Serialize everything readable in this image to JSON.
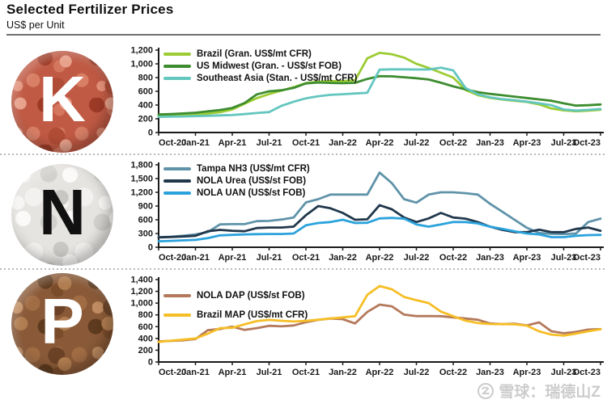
{
  "header": {
    "title": "Selected Fertilizer Prices",
    "subtitle": "US$ per Unit"
  },
  "watermark": {
    "text": "雪球：瑞德山Z"
  },
  "panels": [
    {
      "letter": "K",
      "letter_color": "#ffffff",
      "substance": "potash-granules"
    },
    {
      "letter": "N",
      "letter_color": "#111111",
      "substance": "nitrogen-prills"
    },
    {
      "letter": "P",
      "letter_color": "#ffffff",
      "substance": "phosphate-granules"
    }
  ],
  "chart_data": [
    {
      "type": "line",
      "panel": "K",
      "x_months": [
        "Oct-20",
        "Nov-20",
        "Dec-20",
        "Jan-21",
        "Feb-21",
        "Mar-21",
        "Apr-21",
        "May-21",
        "Jun-21",
        "Jul-21",
        "Aug-21",
        "Sep-21",
        "Oct-21",
        "Nov-21",
        "Dec-21",
        "Jan-22",
        "Feb-22",
        "Mar-22",
        "Apr-22",
        "May-22",
        "Jun-22",
        "Jul-22",
        "Aug-22",
        "Sep-22",
        "Oct-22",
        "Nov-22",
        "Dec-22",
        "Jan-23",
        "Feb-23",
        "Mar-23",
        "Apr-23",
        "May-23",
        "Jun-23",
        "Jul-23",
        "Aug-23",
        "Sep-23",
        "Oct-23"
      ],
      "x_ticks": [
        "Oct-20",
        "Jan-21",
        "Apr-21",
        "Jul-21",
        "Oct-21",
        "Jan-22",
        "Apr-22",
        "Jul-22",
        "Oct-22",
        "Jan-23",
        "Apr-23",
        "Jul-23",
        "Oct-23"
      ],
      "ylim": [
        0,
        1200
      ],
      "y_ticks": [
        "0",
        "200",
        "400",
        "600",
        "800",
        "1,000",
        "1,200"
      ],
      "grid": false,
      "legend_position": "top-left",
      "series": [
        {
          "name": "Brazil (Gran. US$/mt CFR)",
          "color": "#9ccc33",
          "values": [
            250,
            255,
            258,
            262,
            275,
            295,
            335,
            420,
            500,
            560,
            610,
            660,
            720,
            740,
            748,
            750,
            760,
            1080,
            1160,
            1140,
            1090,
            1000,
            940,
            870,
            800,
            620,
            545,
            505,
            480,
            462,
            445,
            410,
            350,
            322,
            310,
            318,
            332
          ]
        },
        {
          "name": "US Midwest (Gran. - US$/st FOB)",
          "color": "#3d8c2f",
          "values": [
            262,
            268,
            278,
            288,
            308,
            328,
            358,
            430,
            555,
            600,
            615,
            650,
            715,
            728,
            722,
            718,
            724,
            780,
            820,
            818,
            805,
            790,
            772,
            725,
            672,
            628,
            588,
            562,
            542,
            522,
            502,
            482,
            462,
            425,
            392,
            398,
            408
          ]
        },
        {
          "name": "Southeast Asia (Stan. - US$/mt CFR)",
          "color": "#63c6bf",
          "values": [
            228,
            231,
            234,
            239,
            244,
            249,
            254,
            268,
            283,
            298,
            388,
            448,
            498,
            528,
            548,
            558,
            568,
            578,
            915,
            920,
            920,
            918,
            918,
            945,
            905,
            648,
            558,
            512,
            486,
            470,
            450,
            425,
            398,
            335,
            320,
            330,
            342
          ]
        }
      ]
    },
    {
      "type": "line",
      "panel": "N",
      "x_months": [
        "Oct-20",
        "Nov-20",
        "Dec-20",
        "Jan-21",
        "Feb-21",
        "Mar-21",
        "Apr-21",
        "May-21",
        "Jun-21",
        "Jul-21",
        "Aug-21",
        "Sep-21",
        "Oct-21",
        "Nov-21",
        "Dec-21",
        "Jan-22",
        "Feb-22",
        "Mar-22",
        "Apr-22",
        "May-22",
        "Jun-22",
        "Jul-22",
        "Aug-22",
        "Sep-22",
        "Oct-22",
        "Nov-22",
        "Dec-22",
        "Jan-23",
        "Feb-23",
        "Mar-23",
        "Apr-23",
        "May-23",
        "Jun-23",
        "Jul-23",
        "Aug-23",
        "Sep-23",
        "Oct-23"
      ],
      "x_ticks": [
        "Oct-20",
        "Jan-21",
        "Apr-21",
        "Jul-21",
        "Oct-21",
        "Jan-22",
        "Apr-22",
        "Jul-22",
        "Oct-22",
        "Jan-23",
        "Apr-23",
        "Jul-23",
        "Oct-23"
      ],
      "ylim": [
        0,
        1800
      ],
      "y_ticks": [
        "0",
        "300",
        "600",
        "900",
        "1,200",
        "1,500",
        "1,800"
      ],
      "grid": false,
      "legend_position": "top-left",
      "series": [
        {
          "name": "Tampa NH3 (US$/mt CFR)",
          "color": "#5f93a9",
          "values": [
            220,
            230,
            250,
            280,
            330,
            500,
            505,
            505,
            570,
            575,
            605,
            650,
            980,
            1050,
            1150,
            1150,
            1150,
            1150,
            1630,
            1400,
            1050,
            975,
            1150,
            1200,
            1200,
            1180,
            1150,
            950,
            775,
            600,
            425,
            310,
            295,
            290,
            300,
            550,
            625
          ]
        },
        {
          "name": "NOLA Urea (US$/st FOB)",
          "color": "#21384c",
          "values": [
            215,
            225,
            235,
            250,
            350,
            380,
            360,
            350,
            420,
            430,
            430,
            450,
            700,
            900,
            850,
            750,
            600,
            610,
            920,
            830,
            650,
            550,
            630,
            750,
            650,
            625,
            550,
            450,
            380,
            330,
            330,
            385,
            330,
            330,
            400,
            430,
            360
          ]
        },
        {
          "name": "NOLA UAN (US$/st FOB)",
          "color": "#2aa2dc",
          "values": [
            130,
            140,
            150,
            160,
            200,
            260,
            270,
            280,
            285,
            290,
            290,
            300,
            480,
            530,
            550,
            600,
            530,
            535,
            630,
            640,
            625,
            500,
            450,
            500,
            550,
            550,
            520,
            450,
            400,
            350,
            300,
            280,
            220,
            220,
            250,
            265,
            270
          ]
        }
      ]
    },
    {
      "type": "line",
      "panel": "P",
      "x_months": [
        "Oct-20",
        "Nov-20",
        "Dec-20",
        "Jan-21",
        "Feb-21",
        "Mar-21",
        "Apr-21",
        "May-21",
        "Jun-21",
        "Jul-21",
        "Aug-21",
        "Sep-21",
        "Oct-21",
        "Nov-21",
        "Dec-21",
        "Jan-22",
        "Feb-22",
        "Mar-22",
        "Apr-22",
        "May-22",
        "Jun-22",
        "Jul-22",
        "Aug-22",
        "Sep-22",
        "Oct-22",
        "Nov-22",
        "Dec-22",
        "Jan-23",
        "Feb-23",
        "Mar-23",
        "Apr-23",
        "May-23",
        "Jun-23",
        "Jul-23",
        "Aug-23",
        "Sep-23",
        "Oct-23"
      ],
      "x_ticks": [
        "Oct-20",
        "Jan-21",
        "Apr-21",
        "Jul-21",
        "Oct-21",
        "Jan-22",
        "Apr-22",
        "Jul-22",
        "Oct-22",
        "Jan-23",
        "Apr-23",
        "Jul-23",
        "Oct-23"
      ],
      "ylim": [
        0,
        1400
      ],
      "y_ticks": [
        "0",
        "200",
        "400",
        "600",
        "800",
        "1,000",
        "1,200",
        "1,400"
      ],
      "grid": false,
      "legend_position": "top-left",
      "series": [
        {
          "name": "NOLA DAP (US$/st FOB)",
          "color": "#b4795b",
          "values": [
            350,
            358,
            368,
            390,
            540,
            560,
            600,
            545,
            575,
            615,
            605,
            620,
            675,
            715,
            738,
            728,
            655,
            850,
            975,
            945,
            805,
            780,
            780,
            778,
            758,
            738,
            718,
            655,
            642,
            650,
            622,
            672,
            522,
            488,
            510,
            550,
            558
          ]
        },
        {
          "name": "Brazil MAP (US$/mt CFR)",
          "color": "#f6be26",
          "values": [
            340,
            362,
            380,
            400,
            480,
            575,
            580,
            640,
            695,
            715,
            700,
            688,
            698,
            718,
            740,
            758,
            778,
            1140,
            1290,
            1235,
            1105,
            1050,
            1000,
            855,
            778,
            702,
            662,
            645,
            642,
            640,
            618,
            520,
            465,
            448,
            482,
            522,
            556
          ]
        }
      ]
    }
  ]
}
